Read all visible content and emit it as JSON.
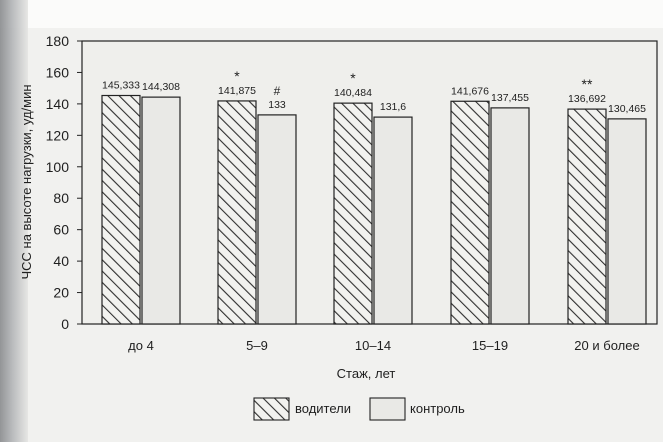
{
  "chart_data": {
    "type": "bar",
    "categories": [
      "до 4",
      "5–9",
      "10–14",
      "15–19",
      "20 и более"
    ],
    "series": [
      {
        "name": "водители",
        "values": [
          145.333,
          141.875,
          140.484,
          141.676,
          136.692
        ],
        "labels": [
          "145,333",
          "141,875",
          "140,484",
          "141,676",
          "136,692"
        ],
        "markers": [
          "",
          "*",
          "*",
          "",
          "**"
        ],
        "pattern": "diagonal-hatch"
      },
      {
        "name": "контроль",
        "values": [
          144.308,
          133,
          131.6,
          137.455,
          130.465
        ],
        "labels": [
          "144,308",
          "133",
          "131,6",
          "137,455",
          "130,465"
        ],
        "markers": [
          "",
          "#",
          "",
          "",
          ""
        ],
        "pattern": "solid-light-gray"
      }
    ],
    "xlabel": "Стаж, лет",
    "ylabel": "ЧСС на высоте нагрузки, уд/мин",
    "ylim": [
      0,
      180
    ],
    "yticks": [
      0,
      20,
      40,
      60,
      80,
      100,
      120,
      140,
      160,
      180
    ],
    "grid": false,
    "legend_position": "bottom-center"
  },
  "colors": {
    "background": "#f1f1ef",
    "plot_background": "#efefec",
    "bar_fill": "#e9e9e6",
    "hatch_stroke": "#333333",
    "axis": "#222222",
    "text": "#1f1f1f"
  }
}
